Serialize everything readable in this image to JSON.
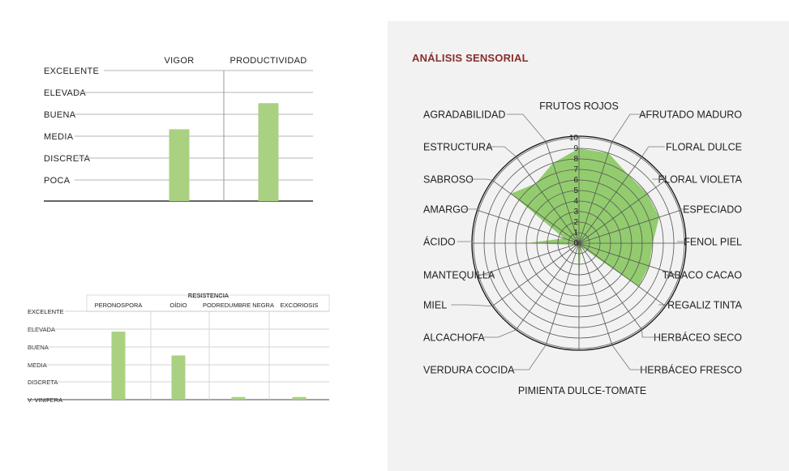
{
  "chart_data": [
    {
      "type": "bar",
      "levels": [
        "EXCELENTE",
        "ELEVADA",
        "BUENA",
        "MEDIA",
        "DISCRETA",
        "POCA"
      ],
      "categories": [
        "VIGOR",
        "PRODUCTIVIDAD"
      ],
      "values": [
        3.3,
        4.5
      ],
      "ylim": [
        0,
        6
      ],
      "grid": true,
      "bar_color": "#a9d181"
    },
    {
      "type": "bar",
      "title": "RESISTENCIA",
      "levels": [
        "EXCELENTE",
        "ELEVADA",
        "BUENA",
        "MEDIA",
        "DISCRETA",
        "V. VINIFERA"
      ],
      "categories": [
        "PERONOSPORA",
        "OÍDIO",
        "PODREDUMBRE NEGRA",
        "EXCORIOSIS"
      ],
      "values": [
        3.85,
        2.5,
        0.15,
        0.15
      ],
      "ylim": [
        0,
        5
      ],
      "grid": true,
      "bar_color": "#a9d181",
      "baseline_label_color": "#8a2d2d"
    },
    {
      "type": "radar",
      "title": "ANÁLISIS SENSORIAL",
      "title_color": "#8a2d2d",
      "rmax": 10,
      "ticks": [
        "0",
        "1",
        "2",
        "3",
        "4",
        "5",
        "6",
        "7",
        "8",
        "9",
        "10"
      ],
      "fill_color": "#93cc6e",
      "axes": [
        {
          "label": "FRUTOS ROJOS",
          "value": 9
        },
        {
          "label": "AFRUTADO MADURO",
          "value": 9
        },
        {
          "label": "FLORAL DULCE",
          "value": 8
        },
        {
          "label": "FLORAL VIOLETA",
          "value": 8
        },
        {
          "label": "ESPECIADO",
          "value": 8
        },
        {
          "label": "FENOL PIEL",
          "value": 7
        },
        {
          "label": "TABACO CACAO",
          "value": 7
        },
        {
          "label": "REGALIZ TINTA",
          "value": 7
        },
        {
          "label": "HERBÁCEO SECO",
          "value": 0.5
        },
        {
          "label": "HERBÁCEO FRESCO",
          "value": 0.5
        },
        {
          "label": "PIMIENTA DULCE-TOMATE",
          "value": 4.5
        },
        {
          "label": "VERDURA COCIDA",
          "value": 0.3
        },
        {
          "label": "ALCACHOFA",
          "value": 0.3
        },
        {
          "label": "MIEL",
          "value": 0.3
        },
        {
          "label": "MANTEQUILLA",
          "value": 0.5
        },
        {
          "label": "ÁCIDO",
          "value": 5
        },
        {
          "label": "AMARGO",
          "value": 1.5
        },
        {
          "label": "SABROSO",
          "value": 8
        },
        {
          "label": "ESTRUCTURA",
          "value": 7
        },
        {
          "label": "AGRADABILIDAD",
          "value": 8
        }
      ]
    }
  ]
}
